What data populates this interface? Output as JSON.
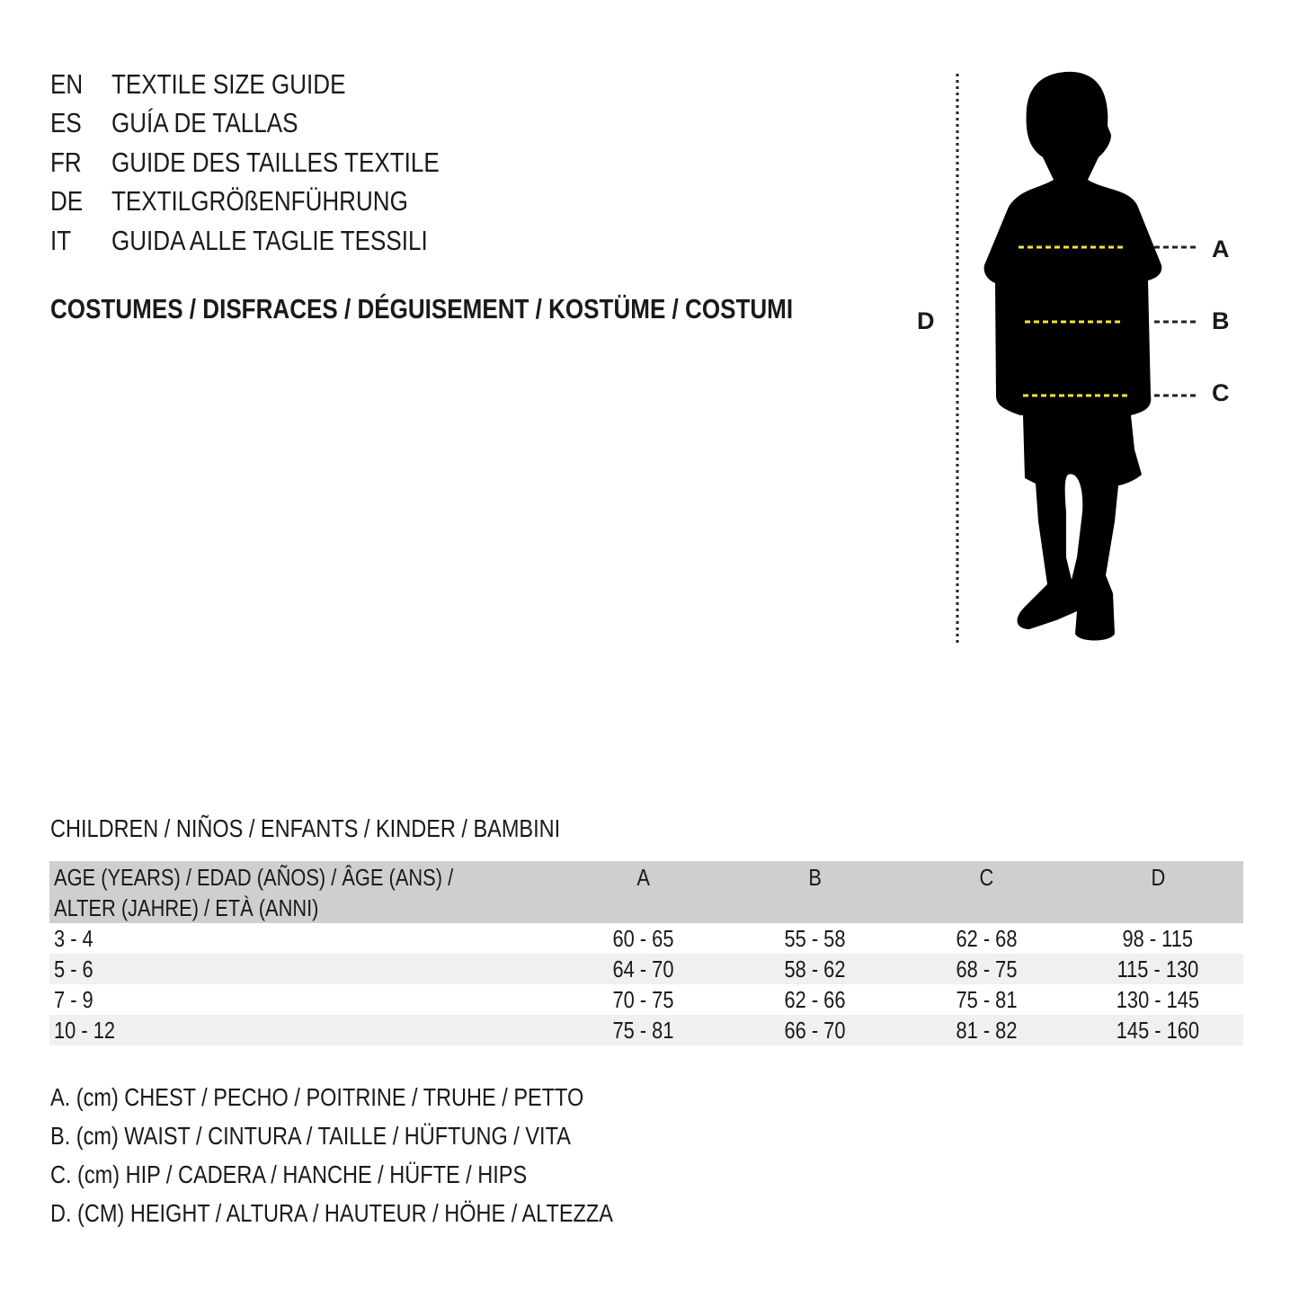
{
  "guide_titles": [
    {
      "code": "EN",
      "text": "TEXTILE SIZE GUIDE"
    },
    {
      "code": "ES",
      "text": "GUÍA DE TALLAS"
    },
    {
      "code": "FR",
      "text": "GUIDE DES TAILLES TEXTILE"
    },
    {
      "code": "DE",
      "text": "TEXTILGRÖßENFÜHRUNG"
    },
    {
      "code": "IT",
      "text": "GUIDA ALLE TAGLIE TESSILI"
    }
  ],
  "category": "COSTUMES / DISFRACES / DÉGUISEMENT / KOSTÜME / COSTUMI",
  "figure": {
    "icon": "child-silhouette",
    "labels": {
      "A": "A",
      "B": "B",
      "C": "C",
      "D": "D"
    },
    "colors": {
      "silhouette": "#000000",
      "measure_line": "#f2e33a"
    }
  },
  "table": {
    "title": "CHILDREN / NIÑOS / ENFANTS / KINDER / BAMBINI",
    "headers": {
      "age_line1": "AGE (YEARS) / EDAD (AÑOS) / ÂGE (ANS) /",
      "age_line2": "ALTER (JAHRE) / ETÀ (ANNI)",
      "a": "A",
      "b": "B",
      "c": "C",
      "d": "D"
    },
    "rows": [
      {
        "age": "3 - 4",
        "a": "60 - 65",
        "b": "55 - 58",
        "c": "62 - 68",
        "d": "98 - 115"
      },
      {
        "age": "5 - 6",
        "a": "64 - 70",
        "b": "58 - 62",
        "c": "68 - 75",
        "d": "115 - 130"
      },
      {
        "age": "7 - 9",
        "a": "70 - 75",
        "b": "62 - 66",
        "c": "75 - 81",
        "d": "130 - 145"
      },
      {
        "age": "10 - 12",
        "a": "75 - 81",
        "b": "66 - 70",
        "c": "81 - 82",
        "d": "145 - 160"
      }
    ],
    "colors": {
      "header_bg": "#cfcfcf",
      "alt_row_bg": "#f0f0f0"
    }
  },
  "legend": [
    "A. (cm) CHEST / PECHO / POITRINE / TRUHE / PETTO",
    "B. (cm) WAIST / CINTURA / TAILLE / HÜFTUNG / VITA",
    "C. (cm) HIP / CADERA / HANCHE / HÜFTE / HIPS",
    "D. (CM) HEIGHT / ALTURA / HAUTEUR / HÖHE / ALTEZZA"
  ]
}
